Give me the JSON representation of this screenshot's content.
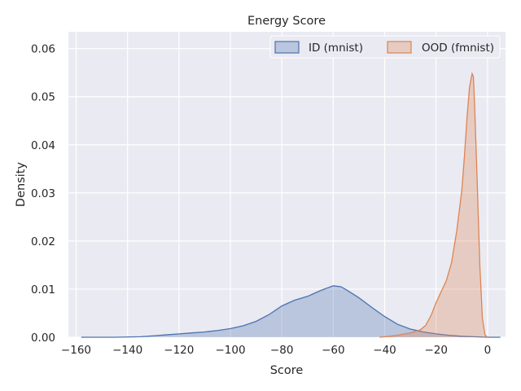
{
  "chart_data": {
    "type": "area",
    "title": "Energy Score",
    "xlabel": "Score",
    "ylabel": "Density",
    "xlim": [
      -163,
      7
    ],
    "ylim": [
      0,
      0.0635
    ],
    "xticks": [
      -160,
      -140,
      -120,
      -100,
      -80,
      -60,
      -40,
      -20,
      0
    ],
    "xtick_labels": [
      "−160",
      "−140",
      "−120",
      "−100",
      "−80",
      "−60",
      "−40",
      "−20",
      "0"
    ],
    "yticks": [
      0.0,
      0.01,
      0.02,
      0.03,
      0.04,
      0.05,
      0.06
    ],
    "ytick_labels": [
      "0.00",
      "0.01",
      "0.02",
      "0.03",
      "0.04",
      "0.05",
      "0.06"
    ],
    "grid": true,
    "legend_position": "top-right",
    "series": [
      {
        "name": "ID (mnist)",
        "color": "#4c72b0",
        "x": [
          -158,
          -145,
          -135,
          -130,
          -125,
          -120,
          -115,
          -110,
          -105,
          -100,
          -95,
          -90,
          -85,
          -80,
          -75,
          -70,
          -65,
          -60,
          -57,
          -55,
          -50,
          -45,
          -40,
          -35,
          -30,
          -25,
          -20,
          -15,
          -10,
          -5,
          0,
          5
        ],
        "y": [
          0.0,
          0.0,
          0.0001,
          0.0003,
          0.0005,
          0.0007,
          0.0009,
          0.0011,
          0.0014,
          0.0018,
          0.0024,
          0.0033,
          0.0047,
          0.0065,
          0.0077,
          0.0085,
          0.0097,
          0.0107,
          0.0105,
          0.0099,
          0.0082,
          0.0062,
          0.0043,
          0.0027,
          0.0017,
          0.0011,
          0.0007,
          0.0004,
          0.0002,
          0.0001,
          0.0,
          0.0
        ]
      },
      {
        "name": "OOD (fmnist)",
        "color": "#dd8452",
        "x": [
          -42,
          -38,
          -35,
          -32,
          -30,
          -28,
          -26,
          -24,
          -22,
          -20,
          -18,
          -16,
          -14,
          -12,
          -10,
          -9,
          -8,
          -7,
          -6,
          -5.5,
          -5,
          -4,
          -3,
          -2,
          -1,
          0
        ],
        "y": [
          0.0,
          0.0002,
          0.0004,
          0.0007,
          0.0009,
          0.0012,
          0.0016,
          0.0025,
          0.0045,
          0.0072,
          0.0095,
          0.0118,
          0.0155,
          0.022,
          0.0305,
          0.0375,
          0.0455,
          0.052,
          0.0548,
          0.0542,
          0.048,
          0.032,
          0.015,
          0.004,
          0.0005,
          0.0
        ]
      }
    ]
  }
}
